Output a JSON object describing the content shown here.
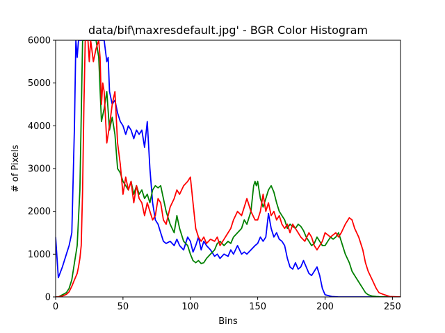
{
  "chart_data": {
    "type": "line",
    "title": "data/bif\\maxresdefault.jpg' - BGR Color Histogram",
    "xlabel": "Bins",
    "ylabel": "# of Pixels",
    "xlim": [
      0,
      256
    ],
    "ylim": [
      0,
      6000
    ],
    "xticks": [
      0,
      50,
      100,
      150,
      200,
      250
    ],
    "yticks": [
      0,
      1000,
      2000,
      3000,
      4000,
      5000,
      6000
    ],
    "grid": false,
    "legend": "none",
    "series": [
      {
        "color": "#0000ff",
        "x": [
          0,
          2,
          5,
          8,
          10,
          12,
          14,
          15,
          16,
          17,
          18,
          19,
          20,
          22,
          25,
          28,
          30,
          32,
          34,
          36,
          38,
          39,
          40,
          42,
          44,
          46,
          48,
          50,
          52,
          54,
          56,
          58,
          60,
          62,
          64,
          66,
          68,
          70,
          72,
          74,
          76,
          78,
          80,
          82,
          85,
          88,
          90,
          92,
          95,
          98,
          100,
          102,
          104,
          106,
          108,
          110,
          112,
          115,
          118,
          120,
          122,
          125,
          128,
          130,
          132,
          135,
          138,
          140,
          142,
          145,
          148,
          150,
          152,
          154,
          156,
          158,
          160,
          162,
          164,
          166,
          168,
          170,
          172,
          174,
          176,
          178,
          180,
          182,
          184,
          186,
          188,
          190,
          192,
          194,
          196,
          198,
          200,
          205,
          210,
          215,
          220,
          225,
          230,
          240,
          256
        ],
        "values": [
          1400,
          450,
          700,
          1000,
          1200,
          1500,
          4000,
          6000,
          5600,
          6000,
          6000,
          6000,
          6000,
          6000,
          6000,
          6000,
          6000,
          6000,
          6000,
          6000,
          5500,
          5600,
          4800,
          4500,
          4600,
          4300,
          4100,
          4000,
          3800,
          4000,
          3900,
          3700,
          3900,
          3800,
          3900,
          3500,
          4100,
          3000,
          2200,
          1800,
          1700,
          1500,
          1300,
          1250,
          1300,
          1200,
          1350,
          1200,
          1100,
          1400,
          1300,
          1050,
          1200,
          1400,
          1100,
          1300,
          1200,
          1100,
          950,
          1000,
          900,
          1000,
          950,
          1100,
          1000,
          1200,
          1000,
          1050,
          1000,
          1100,
          1200,
          1250,
          1400,
          1300,
          1400,
          1950,
          1600,
          1400,
          1500,
          1350,
          1300,
          1200,
          900,
          700,
          650,
          800,
          650,
          700,
          850,
          700,
          550,
          500,
          600,
          700,
          500,
          200,
          50,
          10,
          0,
          0,
          0,
          0,
          0,
          0,
          0
        ]
      },
      {
        "color": "#008000",
        "x": [
          0,
          2,
          5,
          8,
          10,
          12,
          14,
          16,
          18,
          20,
          22,
          25,
          28,
          30,
          32,
          34,
          36,
          38,
          40,
          42,
          44,
          46,
          48,
          50,
          52,
          54,
          56,
          58,
          60,
          62,
          64,
          66,
          68,
          70,
          72,
          74,
          76,
          78,
          80,
          82,
          85,
          88,
          90,
          92,
          95,
          98,
          100,
          102,
          104,
          106,
          108,
          110,
          112,
          115,
          118,
          120,
          122,
          125,
          128,
          130,
          132,
          135,
          138,
          140,
          142,
          145,
          147,
          148,
          149,
          150,
          152,
          154,
          156,
          158,
          160,
          162,
          164,
          166,
          168,
          170,
          172,
          174,
          176,
          178,
          180,
          182,
          184,
          186,
          188,
          190,
          192,
          194,
          196,
          198,
          200,
          202,
          204,
          206,
          208,
          210,
          212,
          215,
          218,
          220,
          222,
          225,
          228,
          230,
          232,
          235,
          238,
          240,
          245,
          256
        ],
        "values": [
          0,
          0,
          50,
          100,
          200,
          400,
          800,
          1200,
          2500,
          6000,
          6000,
          6000,
          6000,
          6000,
          5600,
          4100,
          4400,
          4800,
          3900,
          4200,
          3800,
          3000,
          2900,
          2700,
          2600,
          2500,
          2700,
          2400,
          2600,
          2400,
          2500,
          2300,
          2400,
          2200,
          2500,
          2600,
          2550,
          2600,
          2300,
          2000,
          1700,
          1500,
          1900,
          1600,
          1300,
          1200,
          1000,
          850,
          800,
          850,
          780,
          800,
          900,
          1000,
          1100,
          1250,
          1300,
          1200,
          1300,
          1250,
          1400,
          1500,
          1600,
          1800,
          1700,
          2000,
          2600,
          2700,
          2600,
          2700,
          2300,
          2100,
          2300,
          2500,
          2600,
          2450,
          2200,
          2000,
          1900,
          1800,
          1600,
          1700,
          1650,
          1600,
          1700,
          1650,
          1550,
          1400,
          1300,
          1200,
          1250,
          1400,
          1300,
          1200,
          1200,
          1300,
          1400,
          1350,
          1400,
          1500,
          1300,
          1000,
          800,
          600,
          500,
          350,
          200,
          100,
          50,
          20,
          10,
          5,
          0,
          0
        ]
      },
      {
        "color": "#ff0000",
        "x": [
          0,
          2,
          5,
          8,
          10,
          12,
          14,
          16,
          17,
          18,
          19,
          20,
          21,
          22,
          24,
          25,
          26,
          28,
          30,
          32,
          33,
          34,
          35,
          36,
          38,
          40,
          42,
          44,
          46,
          48,
          50,
          52,
          54,
          56,
          58,
          60,
          62,
          64,
          66,
          68,
          70,
          72,
          74,
          76,
          78,
          80,
          82,
          85,
          88,
          90,
          92,
          95,
          98,
          100,
          102,
          104,
          106,
          108,
          110,
          112,
          115,
          118,
          120,
          122,
          125,
          128,
          130,
          132,
          135,
          138,
          140,
          142,
          145,
          148,
          150,
          152,
          154,
          156,
          158,
          160,
          162,
          164,
          166,
          168,
          170,
          172,
          174,
          176,
          178,
          180,
          182,
          185,
          188,
          190,
          192,
          194,
          196,
          198,
          200,
          202,
          204,
          206,
          208,
          210,
          212,
          215,
          218,
          220,
          222,
          225,
          228,
          230,
          232,
          235,
          238,
          240,
          244,
          248,
          256
        ],
        "values": [
          0,
          0,
          20,
          60,
          120,
          250,
          400,
          550,
          700,
          900,
          1200,
          2500,
          4500,
          6000,
          6000,
          5500,
          6000,
          5500,
          5800,
          6000,
          5600,
          4500,
          5000,
          4800,
          3600,
          4000,
          4500,
          4800,
          3600,
          3100,
          2400,
          2800,
          2500,
          2700,
          2200,
          2600,
          2300,
          2200,
          1900,
          2200,
          2000,
          1800,
          1900,
          2300,
          2200,
          1800,
          1700,
          2100,
          2300,
          2500,
          2400,
          2600,
          2700,
          2800,
          2200,
          1600,
          1400,
          1300,
          1400,
          1250,
          1350,
          1300,
          1400,
          1200,
          1350,
          1500,
          1600,
          1800,
          2000,
          1900,
          2100,
          2300,
          2000,
          1800,
          1800,
          2000,
          2400,
          2000,
          2200,
          1900,
          2000,
          1800,
          1900,
          1700,
          1600,
          1700,
          1500,
          1700,
          1600,
          1500,
          1400,
          1300,
          1500,
          1400,
          1200,
          1100,
          1200,
          1300,
          1500,
          1450,
          1400,
          1450,
          1500,
          1400,
          1500,
          1700,
          1850,
          1800,
          1600,
          1400,
          1100,
          800,
          600,
          400,
          200,
          100,
          50,
          10,
          0
        ]
      }
    ]
  }
}
